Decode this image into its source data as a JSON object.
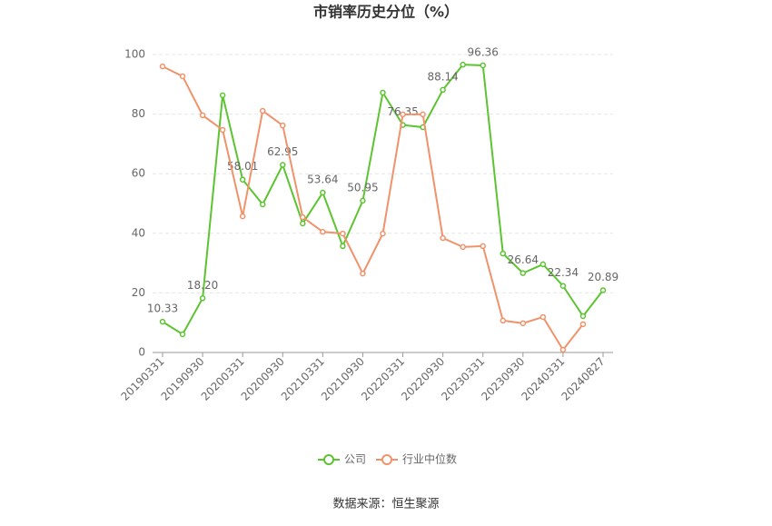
{
  "chart_data": {
    "type": "line",
    "title": "市销率历史分位（%）",
    "source": "数据来源：恒生聚源",
    "categories": [
      "20190331",
      null,
      "20190930",
      null,
      "20200331",
      null,
      "20200930",
      null,
      "20210331",
      null,
      "20210930",
      null,
      "20220331",
      null,
      "20220930",
      null,
      "20230331",
      null,
      "20230930",
      null,
      "20240331",
      null,
      "20240827"
    ],
    "series": [
      {
        "name": "公司",
        "color": "#5cc431",
        "values": [
          10.33,
          6.1,
          18.2,
          86.3,
          58.01,
          49.7,
          62.95,
          43.3,
          53.64,
          35.7,
          50.95,
          87.2,
          76.35,
          75.6,
          88.14,
          96.6,
          96.36,
          33.2,
          26.64,
          29.6,
          22.34,
          12.2,
          20.89
        ],
        "value_labels": [
          "10.33",
          null,
          "18.20",
          null,
          "58.01",
          null,
          "62.95",
          null,
          "53.64",
          null,
          "50.95",
          null,
          "76.35",
          null,
          "88.14",
          null,
          "96.36",
          null,
          "26.64",
          null,
          "22.34",
          null,
          "20.89"
        ]
      },
      {
        "name": "行业中位数",
        "color": "#f0926a",
        "values": [
          96.0,
          92.7,
          79.6,
          74.7,
          45.7,
          81.1,
          76.2,
          45.4,
          40.5,
          39.9,
          26.5,
          39.9,
          79.9,
          79.9,
          38.4,
          35.4,
          35.7,
          10.7,
          9.8,
          11.9,
          0.9,
          9.5,
          null
        ]
      }
    ],
    "ylim": [
      0,
      100
    ],
    "yticks": [
      0,
      20,
      40,
      60,
      80,
      100
    ],
    "grid": true,
    "legend": "bottom"
  }
}
